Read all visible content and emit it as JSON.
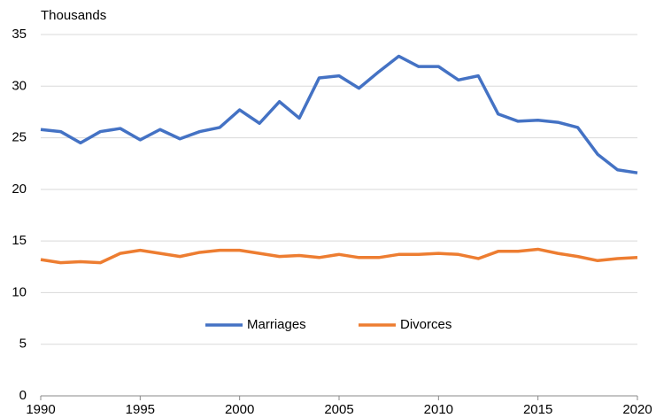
{
  "chart_data": {
    "type": "line",
    "y_label": "Thousands",
    "x": [
      1990,
      1991,
      1992,
      1993,
      1994,
      1995,
      1996,
      1997,
      1998,
      1999,
      2000,
      2001,
      2002,
      2003,
      2004,
      2005,
      2006,
      2007,
      2008,
      2009,
      2010,
      2011,
      2012,
      2013,
      2014,
      2015,
      2016,
      2017,
      2018,
      2019,
      2020
    ],
    "series": [
      {
        "name": "Marriages",
        "color": "#4472c4",
        "values": [
          25.8,
          25.6,
          24.5,
          25.6,
          25.9,
          24.8,
          25.8,
          24.9,
          25.6,
          26.0,
          27.7,
          26.4,
          28.5,
          26.9,
          30.8,
          31.0,
          29.8,
          31.4,
          32.9,
          31.9,
          31.9,
          30.6,
          31.0,
          27.3,
          26.6,
          26.7,
          26.5,
          26.0,
          23.4,
          21.9,
          21.6
        ]
      },
      {
        "name": "Divorces",
        "color": "#ed7d31",
        "values": [
          13.2,
          12.9,
          13.0,
          12.9,
          13.8,
          14.1,
          13.8,
          13.5,
          13.9,
          14.1,
          14.1,
          13.8,
          13.5,
          13.6,
          13.4,
          13.7,
          13.4,
          13.4,
          13.7,
          13.7,
          13.8,
          13.7,
          13.3,
          14.0,
          14.0,
          14.2,
          13.8,
          13.5,
          13.1,
          13.3,
          13.4
        ]
      }
    ],
    "xlim": [
      1990,
      2020
    ],
    "xticks": [
      1990,
      1995,
      2000,
      2005,
      2010,
      2015,
      2020
    ],
    "ylim": [
      0,
      35
    ],
    "yticks": [
      0,
      5,
      10,
      15,
      20,
      25,
      30,
      35
    ],
    "grid": true,
    "legend": "bottom"
  }
}
